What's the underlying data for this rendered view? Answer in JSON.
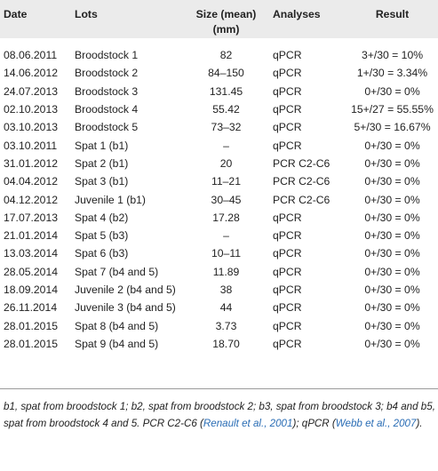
{
  "table": {
    "headers": {
      "date": "Date",
      "lots": "Lots",
      "size_line1": "Size (mean)",
      "size_line2": "(mm)",
      "analyses": "Analyses",
      "result": "Result"
    },
    "rows": [
      {
        "date": "08.06.2011",
        "lot": "Broodstock 1",
        "size": "82",
        "analysis": "qPCR",
        "result": "3+/30 = 10%"
      },
      {
        "date": "14.06.2012",
        "lot": "Broodstock 2",
        "size": "84–150",
        "analysis": "qPCR",
        "result": "1+/30 = 3.34%"
      },
      {
        "date": "24.07.2013",
        "lot": "Broodstock 3",
        "size": "131.45",
        "analysis": "qPCR",
        "result": "0+/30 = 0%"
      },
      {
        "date": "02.10.2013",
        "lot": "Broodstock 4",
        "size": "55.42",
        "analysis": "qPCR",
        "result": "15+/27 = 55.55%"
      },
      {
        "date": "03.10.2013",
        "lot": "Broodstock 5",
        "size": "73–32",
        "analysis": "qPCR",
        "result": "5+/30 = 16.67%"
      },
      {
        "date": "03.10.2011",
        "lot": "Spat 1 (b1)",
        "size": "–",
        "analysis": "qPCR",
        "result": "0+/30 = 0%"
      },
      {
        "date": "31.01.2012",
        "lot": "Spat 2 (b1)",
        "size": "20",
        "analysis": "PCR C2-C6",
        "result": "0+/30 = 0%"
      },
      {
        "date": "04.04.2012",
        "lot": "Spat 3 (b1)",
        "size": "11–21",
        "analysis": "PCR C2-C6",
        "result": "0+/30 = 0%"
      },
      {
        "date": "04.12.2012",
        "lot": "Juvenile 1 (b1)",
        "size": "30–45",
        "analysis": "PCR C2-C6",
        "result": "0+/30 = 0%"
      },
      {
        "date": "17.07.2013",
        "lot": "Spat 4 (b2)",
        "size": "17.28",
        "analysis": "qPCR",
        "result": "0+/30 = 0%"
      },
      {
        "date": "21.01.2014",
        "lot": "Spat 5 (b3)",
        "size": "–",
        "analysis": "qPCR",
        "result": "0+/30 = 0%"
      },
      {
        "date": "13.03.2014",
        "lot": "Spat 6 (b3)",
        "size": "10–11",
        "analysis": "qPCR",
        "result": "0+/30 = 0%"
      },
      {
        "date": "28.05.2014",
        "lot": "Spat 7 (b4 and 5)",
        "size": "11.89",
        "analysis": "qPCR",
        "result": "0+/30 = 0%"
      },
      {
        "date": "18.09.2014",
        "lot": "Juvenile 2 (b4 and 5)",
        "size": "38",
        "analysis": "qPCR",
        "result": "0+/30 = 0%"
      },
      {
        "date": "26.11.2014",
        "lot": "Juvenile 3 (b4 and 5)",
        "size": "44",
        "analysis": "qPCR",
        "result": "0+/30 = 0%"
      },
      {
        "date": "28.01.2015",
        "lot": "Spat 8 (b4 and 5)",
        "size": "3.73",
        "analysis": "qPCR",
        "result": "0+/30 = 0%"
      },
      {
        "date": "28.01.2015",
        "lot": "Spat 9 (b4 and 5)",
        "size": "18.70",
        "analysis": "qPCR",
        "result": "0+/30 = 0%"
      }
    ]
  },
  "footnote": {
    "text_a": "b1, spat from broodstock 1; b2, spat from broodstock 2; b3, spat from broodstock 3; b4 and b5, spat from broodstock 4 and 5. PCR C2-C6 (",
    "link_a": "Renault et al., 2001",
    "text_b": "); qPCR (",
    "link_b": "Webb et al., 2007",
    "text_c": ")."
  },
  "colors": {
    "header_bg": "#ebebeb",
    "rule": "#9a9a9a",
    "link": "#2a6db5"
  }
}
